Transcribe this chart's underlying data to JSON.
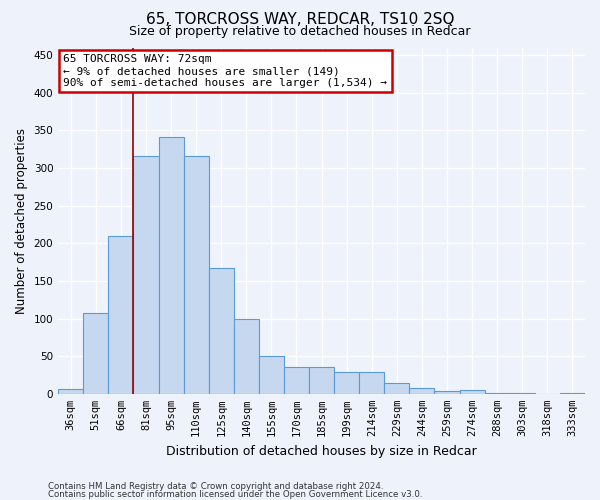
{
  "title": "65, TORCROSS WAY, REDCAR, TS10 2SQ",
  "subtitle": "Size of property relative to detached houses in Redcar",
  "xlabel": "Distribution of detached houses by size in Redcar",
  "ylabel": "Number of detached properties",
  "categories": [
    "36sqm",
    "51sqm",
    "66sqm",
    "81sqm",
    "95sqm",
    "110sqm",
    "125sqm",
    "140sqm",
    "155sqm",
    "170sqm",
    "185sqm",
    "199sqm",
    "214sqm",
    "229sqm",
    "244sqm",
    "259sqm",
    "274sqm",
    "288sqm",
    "303sqm",
    "318sqm",
    "333sqm"
  ],
  "values": [
    7,
    107,
    210,
    316,
    341,
    316,
    167,
    99,
    50,
    35,
    35,
    29,
    29,
    15,
    8,
    4,
    5,
    1,
    1,
    0,
    1
  ],
  "bar_color": "#c5d8f0",
  "bar_edge_color": "#5b9bd5",
  "bar_width": 1.0,
  "red_line_x": 2.5,
  "annotation_line1": "65 TORCROSS WAY: 72sqm",
  "annotation_line2": "← 9% of detached houses are smaller (149)",
  "annotation_line3": "90% of semi-detached houses are larger (1,534) →",
  "annotation_box_color": "#ffffff",
  "annotation_box_edge_color": "#cc0000",
  "ylim": [
    0,
    460
  ],
  "yticks": [
    0,
    50,
    100,
    150,
    200,
    250,
    300,
    350,
    400,
    450
  ],
  "footer_line1": "Contains HM Land Registry data © Crown copyright and database right 2024.",
  "footer_line2": "Contains public sector information licensed under the Open Government Licence v3.0.",
  "bg_color": "#eef2fa",
  "plot_bg_color": "#eef2fa",
  "grid_color": "#ffffff",
  "title_fontsize": 11,
  "subtitle_fontsize": 9,
  "tick_fontsize": 7.5,
  "ylabel_fontsize": 8.5,
  "xlabel_fontsize": 9
}
